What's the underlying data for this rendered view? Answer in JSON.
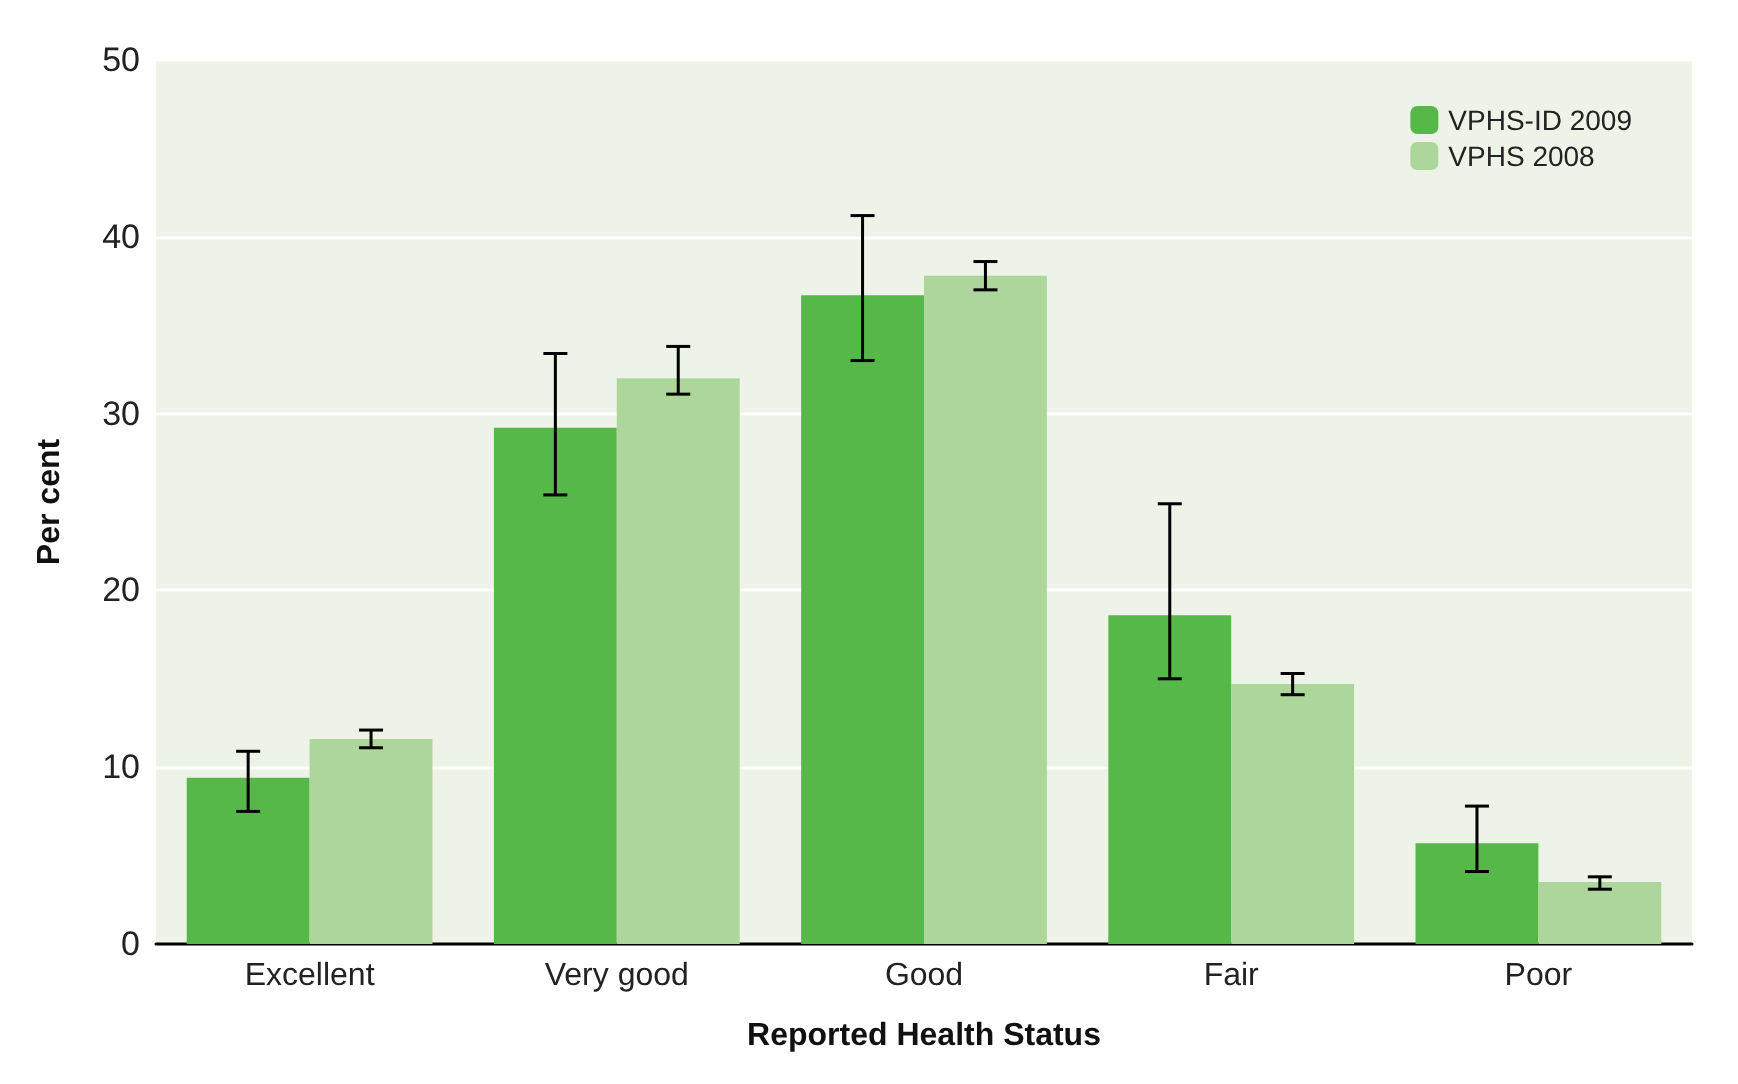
{
  "chart_data": {
    "type": "bar",
    "xlabel": "Reported Health Status",
    "ylabel": "Per cent",
    "categories": [
      "Excellent",
      "Very good",
      "Good",
      "Fair",
      "Poor"
    ],
    "series": [
      {
        "name": "VPHS-ID 2009",
        "color": "#57b84a",
        "values": [
          9.4,
          29.2,
          36.7,
          18.6,
          5.7
        ],
        "errors": [
          [
            7.5,
            10.9
          ],
          [
            25.4,
            33.4
          ],
          [
            33.0,
            41.2
          ],
          [
            15.0,
            24.9
          ],
          [
            4.1,
            7.8
          ]
        ]
      },
      {
        "name": "VPHS 2008",
        "color": "#acd69a",
        "values": [
          11.6,
          32.0,
          37.8,
          14.7,
          3.5
        ],
        "errors": [
          [
            11.1,
            12.1
          ],
          [
            31.1,
            33.8
          ],
          [
            37.0,
            38.6
          ],
          [
            14.1,
            15.3
          ],
          [
            3.1,
            3.8
          ]
        ]
      }
    ],
    "ylim": [
      0,
      50
    ],
    "yticks": [
      0,
      10,
      20,
      30,
      40,
      50
    ],
    "grid": "y",
    "legend": "top right"
  }
}
